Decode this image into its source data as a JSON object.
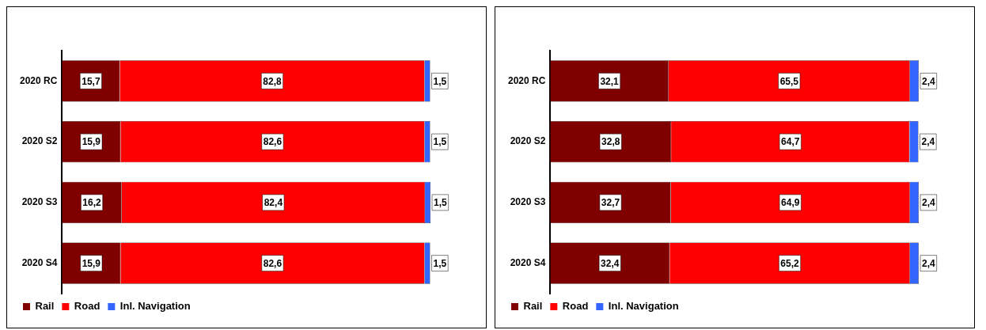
{
  "chart_data": [
    {
      "type": "bar",
      "orientation": "horizontal",
      "stacked": true,
      "categories": [
        "2020 RC",
        "2020 S2",
        "2020 S3",
        "2020 S4"
      ],
      "series": [
        {
          "name": "Rail",
          "color": "#800000",
          "values": [
            15.7,
            15.9,
            16.2,
            15.9
          ],
          "value_labels": [
            "15,7",
            "15,9",
            "16,2",
            "15,9"
          ]
        },
        {
          "name": "Road",
          "color": "#ff0000",
          "values": [
            82.8,
            82.6,
            82.4,
            82.6
          ],
          "value_labels": [
            "82,8",
            "82,6",
            "82,4",
            "82,6"
          ]
        },
        {
          "name": "Inl. Navigation",
          "color": "#3366ff",
          "values": [
            1.5,
            1.5,
            1.5,
            1.5
          ],
          "value_labels": [
            "1,5",
            "1,5",
            "1,5",
            "1,5"
          ]
        }
      ],
      "tick_labels": "y",
      "legend": "bottom left"
    },
    {
      "type": "bar",
      "orientation": "horizontal",
      "stacked": true,
      "categories": [
        "2020 RC",
        "2020 S2",
        "2020 S3",
        "2020 S4"
      ],
      "series": [
        {
          "name": "Rail",
          "color": "#800000",
          "values": [
            32.1,
            32.8,
            32.7,
            32.4
          ],
          "value_labels": [
            "32,1",
            "32,8",
            "32,7",
            "32,4"
          ]
        },
        {
          "name": "Road",
          "color": "#ff0000",
          "values": [
            65.5,
            64.7,
            64.9,
            65.2
          ],
          "value_labels": [
            "65,5",
            "64,7",
            "64,9",
            "65,2"
          ]
        },
        {
          "name": "Inl. Navigation",
          "color": "#3366ff",
          "values": [
            2.4,
            2.4,
            2.4,
            2.4
          ],
          "value_labels": [
            "2,4",
            "2,4",
            "2,4",
            "2,4"
          ]
        }
      ],
      "tick_labels": "y",
      "legend": "bottom left"
    }
  ]
}
